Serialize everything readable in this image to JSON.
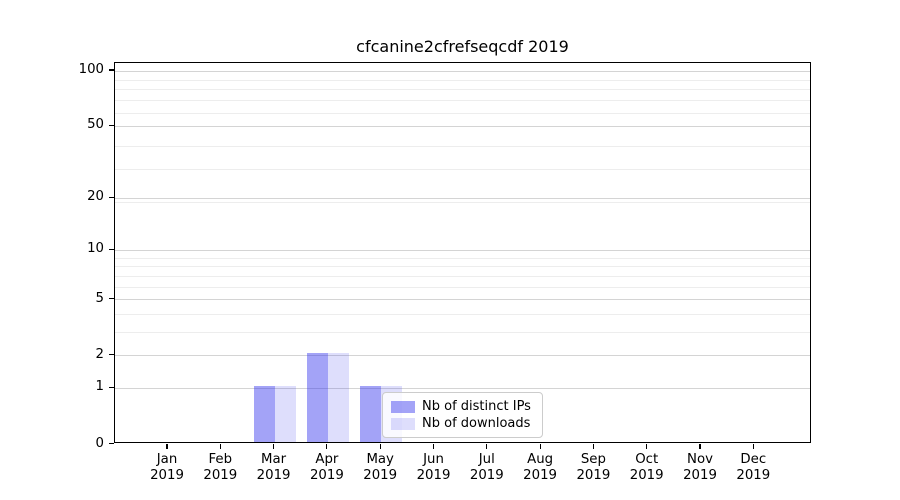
{
  "chart_data": {
    "type": "bar",
    "title": "cfcanine2cfrefseqcdf 2019",
    "x": {
      "months": [
        "Jan",
        "Feb",
        "Mar",
        "Apr",
        "May",
        "Jun",
        "Jul",
        "Aug",
        "Sep",
        "Oct",
        "Nov",
        "Dec"
      ],
      "year": "2019"
    },
    "y_axis": {
      "scale": "log1p",
      "ticks": [
        0,
        1,
        2,
        5,
        10,
        20,
        50,
        100
      ],
      "tick_labels": [
        "0",
        "1",
        "2",
        "5",
        "10",
        "20",
        "50",
        "100"
      ],
      "minor_gridlines": [
        3,
        4,
        6,
        7,
        8,
        9,
        19,
        29,
        39,
        59,
        69,
        79,
        89
      ],
      "range": [
        0,
        110
      ],
      "grid": "on"
    },
    "series": [
      {
        "name": "Nb of distinct IPs",
        "color": "rgba(51,51,238,0.45)",
        "values": [
          0,
          0,
          1,
          2,
          1,
          0,
          0,
          0,
          0,
          0,
          0,
          0
        ]
      },
      {
        "name": "Nb of downloads",
        "color": "rgba(51,51,238,0.16)",
        "values": [
          0,
          0,
          1,
          2,
          1,
          0,
          0,
          0,
          0,
          0,
          0,
          0
        ]
      }
    ],
    "legend": {
      "position": "lower-center-inside"
    },
    "colors": {
      "grid_major": "#d4d4d4",
      "grid_minor": "#ededed",
      "spine": "#000000",
      "background": "#ffffff",
      "text": "#000000"
    }
  }
}
